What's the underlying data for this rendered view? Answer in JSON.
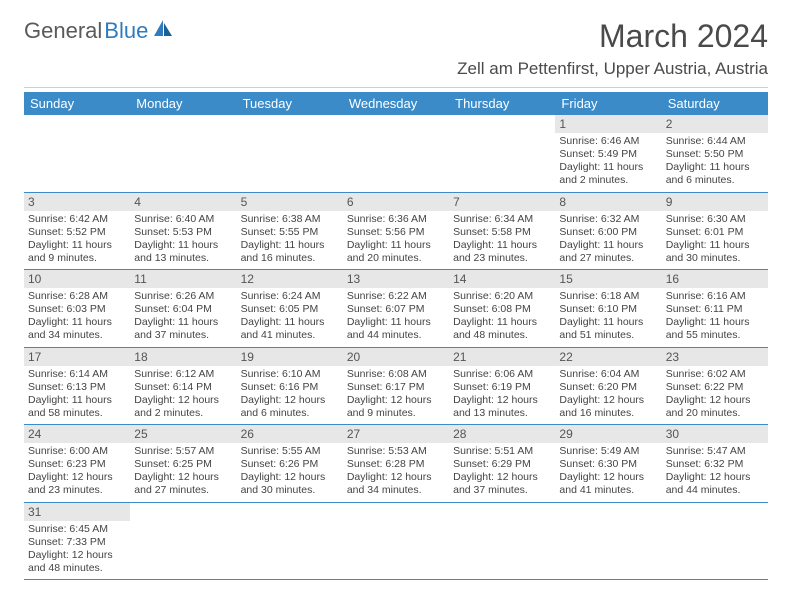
{
  "logo": {
    "text1": "General",
    "text2": "Blue"
  },
  "title": "March 2024",
  "location": "Zell am Pettenfirst, Upper Austria, Austria",
  "header_bg": "#3b8bc8",
  "day_headers": [
    "Sunday",
    "Monday",
    "Tuesday",
    "Wednesday",
    "Thursday",
    "Friday",
    "Saturday"
  ],
  "weeks": [
    [
      null,
      null,
      null,
      null,
      null,
      {
        "n": "1",
        "sr": "Sunrise: 6:46 AM",
        "ss": "Sunset: 5:49 PM",
        "dl": "Daylight: 11 hours and 2 minutes."
      },
      {
        "n": "2",
        "sr": "Sunrise: 6:44 AM",
        "ss": "Sunset: 5:50 PM",
        "dl": "Daylight: 11 hours and 6 minutes."
      }
    ],
    [
      {
        "n": "3",
        "sr": "Sunrise: 6:42 AM",
        "ss": "Sunset: 5:52 PM",
        "dl": "Daylight: 11 hours and 9 minutes."
      },
      {
        "n": "4",
        "sr": "Sunrise: 6:40 AM",
        "ss": "Sunset: 5:53 PM",
        "dl": "Daylight: 11 hours and 13 minutes."
      },
      {
        "n": "5",
        "sr": "Sunrise: 6:38 AM",
        "ss": "Sunset: 5:55 PM",
        "dl": "Daylight: 11 hours and 16 minutes."
      },
      {
        "n": "6",
        "sr": "Sunrise: 6:36 AM",
        "ss": "Sunset: 5:56 PM",
        "dl": "Daylight: 11 hours and 20 minutes."
      },
      {
        "n": "7",
        "sr": "Sunrise: 6:34 AM",
        "ss": "Sunset: 5:58 PM",
        "dl": "Daylight: 11 hours and 23 minutes."
      },
      {
        "n": "8",
        "sr": "Sunrise: 6:32 AM",
        "ss": "Sunset: 6:00 PM",
        "dl": "Daylight: 11 hours and 27 minutes."
      },
      {
        "n": "9",
        "sr": "Sunrise: 6:30 AM",
        "ss": "Sunset: 6:01 PM",
        "dl": "Daylight: 11 hours and 30 minutes."
      }
    ],
    [
      {
        "n": "10",
        "sr": "Sunrise: 6:28 AM",
        "ss": "Sunset: 6:03 PM",
        "dl": "Daylight: 11 hours and 34 minutes."
      },
      {
        "n": "11",
        "sr": "Sunrise: 6:26 AM",
        "ss": "Sunset: 6:04 PM",
        "dl": "Daylight: 11 hours and 37 minutes."
      },
      {
        "n": "12",
        "sr": "Sunrise: 6:24 AM",
        "ss": "Sunset: 6:05 PM",
        "dl": "Daylight: 11 hours and 41 minutes."
      },
      {
        "n": "13",
        "sr": "Sunrise: 6:22 AM",
        "ss": "Sunset: 6:07 PM",
        "dl": "Daylight: 11 hours and 44 minutes."
      },
      {
        "n": "14",
        "sr": "Sunrise: 6:20 AM",
        "ss": "Sunset: 6:08 PM",
        "dl": "Daylight: 11 hours and 48 minutes."
      },
      {
        "n": "15",
        "sr": "Sunrise: 6:18 AM",
        "ss": "Sunset: 6:10 PM",
        "dl": "Daylight: 11 hours and 51 minutes."
      },
      {
        "n": "16",
        "sr": "Sunrise: 6:16 AM",
        "ss": "Sunset: 6:11 PM",
        "dl": "Daylight: 11 hours and 55 minutes."
      }
    ],
    [
      {
        "n": "17",
        "sr": "Sunrise: 6:14 AM",
        "ss": "Sunset: 6:13 PM",
        "dl": "Daylight: 11 hours and 58 minutes."
      },
      {
        "n": "18",
        "sr": "Sunrise: 6:12 AM",
        "ss": "Sunset: 6:14 PM",
        "dl": "Daylight: 12 hours and 2 minutes."
      },
      {
        "n": "19",
        "sr": "Sunrise: 6:10 AM",
        "ss": "Sunset: 6:16 PM",
        "dl": "Daylight: 12 hours and 6 minutes."
      },
      {
        "n": "20",
        "sr": "Sunrise: 6:08 AM",
        "ss": "Sunset: 6:17 PM",
        "dl": "Daylight: 12 hours and 9 minutes."
      },
      {
        "n": "21",
        "sr": "Sunrise: 6:06 AM",
        "ss": "Sunset: 6:19 PM",
        "dl": "Daylight: 12 hours and 13 minutes."
      },
      {
        "n": "22",
        "sr": "Sunrise: 6:04 AM",
        "ss": "Sunset: 6:20 PM",
        "dl": "Daylight: 12 hours and 16 minutes."
      },
      {
        "n": "23",
        "sr": "Sunrise: 6:02 AM",
        "ss": "Sunset: 6:22 PM",
        "dl": "Daylight: 12 hours and 20 minutes."
      }
    ],
    [
      {
        "n": "24",
        "sr": "Sunrise: 6:00 AM",
        "ss": "Sunset: 6:23 PM",
        "dl": "Daylight: 12 hours and 23 minutes."
      },
      {
        "n": "25",
        "sr": "Sunrise: 5:57 AM",
        "ss": "Sunset: 6:25 PM",
        "dl": "Daylight: 12 hours and 27 minutes."
      },
      {
        "n": "26",
        "sr": "Sunrise: 5:55 AM",
        "ss": "Sunset: 6:26 PM",
        "dl": "Daylight: 12 hours and 30 minutes."
      },
      {
        "n": "27",
        "sr": "Sunrise: 5:53 AM",
        "ss": "Sunset: 6:28 PM",
        "dl": "Daylight: 12 hours and 34 minutes."
      },
      {
        "n": "28",
        "sr": "Sunrise: 5:51 AM",
        "ss": "Sunset: 6:29 PM",
        "dl": "Daylight: 12 hours and 37 minutes."
      },
      {
        "n": "29",
        "sr": "Sunrise: 5:49 AM",
        "ss": "Sunset: 6:30 PM",
        "dl": "Daylight: 12 hours and 41 minutes."
      },
      {
        "n": "30",
        "sr": "Sunrise: 5:47 AM",
        "ss": "Sunset: 6:32 PM",
        "dl": "Daylight: 12 hours and 44 minutes."
      }
    ],
    [
      {
        "n": "31",
        "sr": "Sunrise: 6:45 AM",
        "ss": "Sunset: 7:33 PM",
        "dl": "Daylight: 12 hours and 48 minutes."
      },
      null,
      null,
      null,
      null,
      null,
      null
    ]
  ]
}
